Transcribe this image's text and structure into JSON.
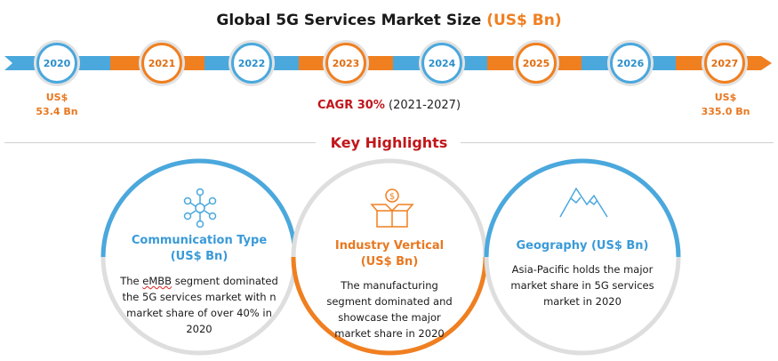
{
  "title": {
    "main": "Global 5G Services Market Size ",
    "accent": "(US$ Bn)"
  },
  "colors": {
    "blue": "#4aa8dd",
    "orange": "#f07f20",
    "red": "#c0161b",
    "grey": "#dddddd"
  },
  "timeline": {
    "years": [
      "2020",
      "2021",
      "2022",
      "2023",
      "2024",
      "2025",
      "2026",
      "2027"
    ],
    "start_value": {
      "unit": "US$",
      "amount": "53.4 Bn"
    },
    "end_value": {
      "unit": "US$",
      "amount": "335.0 Bn"
    },
    "cagr_label": "CAGR 30%",
    "cagr_period": " (2021-2027)"
  },
  "chart_data": {
    "type": "table",
    "title": "Global 5G Services Market Size (US$ Bn)",
    "x": [
      "2020",
      "2027"
    ],
    "values": [
      53.4,
      335.0
    ],
    "unit": "US$ Bn",
    "cagr": "30% (2021-2027)"
  },
  "highlights": {
    "title": "Key Highlights",
    "cards": [
      {
        "icon": "network-icon",
        "head1": "Communication Type",
        "head2": "(US$ Bn)",
        "body_prefix": "The ",
        "body_underlined": "eMBB",
        "body_rest": " segment dominated the 5G services market with n market share of over 40% in 2020"
      },
      {
        "icon": "money-box-icon",
        "head1": "Industry Vertical",
        "head2": "(US$ Bn)",
        "body": "The manufacturing segment dominated and showcase the major market share in 2020"
      },
      {
        "icon": "mountain-icon",
        "head1": "Geography (US$ Bn)",
        "body": "Asia-Pacific holds the major market share in 5G services market in 2020"
      }
    ]
  }
}
